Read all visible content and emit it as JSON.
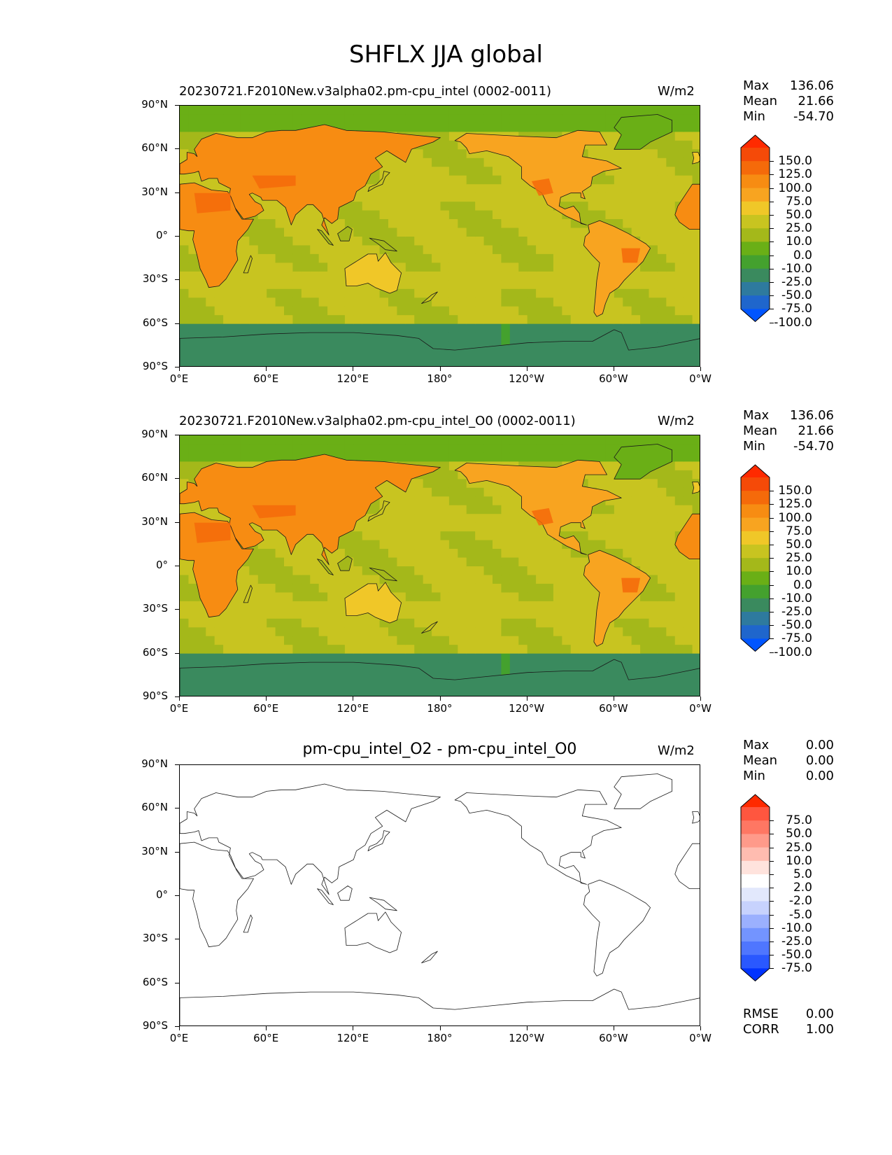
{
  "title": "SHFLX JJA global",
  "units": "W/m2",
  "xticks": [
    "0°E",
    "60°E",
    "120°E",
    "180°",
    "120°W",
    "60°W",
    "0°W"
  ],
  "yticks": [
    "90°N",
    "60°N",
    "30°N",
    "0°",
    "30°S",
    "60°S",
    "90°S"
  ],
  "colors": {
    "contour_fill": [
      "#0055ff",
      "#1f66cc",
      "#2e7a9e",
      "#3a8a5e",
      "#44a12e",
      "#6aaf16",
      "#a4b81a",
      "#c8c420",
      "#f0c728",
      "#f8a420",
      "#f78c12",
      "#f56a0a",
      "#f54a08",
      "#ff2a00"
    ],
    "diff_fill": [
      "#0033ff",
      "#2a58ff",
      "#4f76ff",
      "#7394ff",
      "#9bb0fe",
      "#c7d2fd",
      "#e2e8fc",
      "#ffffff",
      "#ffe3dd",
      "#ffbcb0",
      "#ff9a8a",
      "#ff7763",
      "#ff563f",
      "#ff2a00"
    ]
  },
  "chart_data": [
    {
      "type": "heatmap",
      "name": "test",
      "title": "20230721.F2010New.v3alpha02.pm-cpu_intel (0002-0011)",
      "units": "W/m2",
      "stats": {
        "max_label": "Max",
        "max": "136.06",
        "mean_label": "Mean",
        "mean": "21.66",
        "min_label": "Min",
        "min": "-54.70"
      },
      "levels": [
        "150.0",
        "125.0",
        "100.0",
        "75.0",
        "50.0",
        "25.0",
        "10.0",
        "0.0",
        "-10.0",
        "-25.0",
        "-50.0",
        "-75.0",
        "-100.0"
      ],
      "xlim": [
        0,
        360
      ],
      "ylim": [
        -90,
        90
      ]
    },
    {
      "type": "heatmap",
      "name": "reference",
      "title": "20230721.F2010New.v3alpha02.pm-cpu_intel_O0 (0002-0011)",
      "units": "W/m2",
      "stats": {
        "max_label": "Max",
        "max": "136.06",
        "mean_label": "Mean",
        "mean": "21.66",
        "min_label": "Min",
        "min": "-54.70"
      },
      "levels": [
        "150.0",
        "125.0",
        "100.0",
        "75.0",
        "50.0",
        "25.0",
        "10.0",
        "0.0",
        "-10.0",
        "-25.0",
        "-50.0",
        "-75.0",
        "-100.0"
      ],
      "xlim": [
        0,
        360
      ],
      "ylim": [
        -90,
        90
      ]
    },
    {
      "type": "heatmap",
      "name": "difference",
      "title": "pm-cpu_intel_O2 - pm-cpu_intel_O0",
      "units": "W/m2",
      "stats": {
        "max_label": "Max",
        "max": "0.00",
        "mean_label": "Mean",
        "mean": "0.00",
        "min_label": "Min",
        "min": "0.00"
      },
      "levels": [
        "75.0",
        "50.0",
        "25.0",
        "10.0",
        "5.0",
        "2.0",
        "-2.0",
        "-5.0",
        "-10.0",
        "-25.0",
        "-50.0",
        "-75.0"
      ],
      "rmse_label": "RMSE",
      "rmse": "0.00",
      "corr_label": "CORR",
      "corr": "1.00",
      "xlim": [
        0,
        360
      ],
      "ylim": [
        -90,
        90
      ]
    }
  ]
}
